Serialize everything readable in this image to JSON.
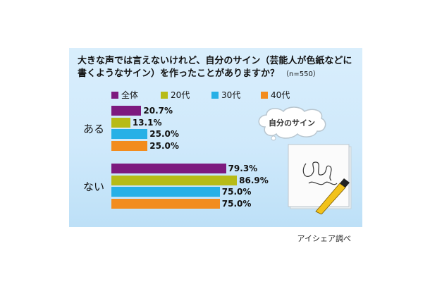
{
  "question": {
    "text": "大きな声では言えないけれど、自分のサイン（芸能人が色紙などに書くようなサイン）を作ったことがありますか？",
    "sample": "（n=550）"
  },
  "illustration": {
    "bubble_text": "自分のサイン",
    "icons": [
      "speech-bubble-icon",
      "signature-card-icon",
      "pen-icon"
    ]
  },
  "source": "アイシェア調べ",
  "chart_data": {
    "type": "bar",
    "orientation": "horizontal",
    "categories": [
      "ある",
      "ない"
    ],
    "series": [
      {
        "name": "全体",
        "color": "#7d1a7f",
        "values": [
          20.7,
          79.3
        ]
      },
      {
        "name": "20代",
        "color": "#b7bb17",
        "values": [
          13.1,
          86.9
        ]
      },
      {
        "name": "30代",
        "color": "#27b0e6",
        "values": [
          25.0,
          75.0
        ]
      },
      {
        "name": "40代",
        "color": "#f28c1e",
        "values": [
          25.0,
          75.0
        ]
      }
    ],
    "value_labels": [
      [
        "20.7%",
        "79.3%"
      ],
      [
        "13.1%",
        "86.9%"
      ],
      [
        "25.0%",
        "75.0%"
      ],
      [
        "25.0%",
        "75.0%"
      ]
    ],
    "xlim": [
      0,
      100
    ],
    "unit": "%",
    "grid": false,
    "legend": "top"
  }
}
